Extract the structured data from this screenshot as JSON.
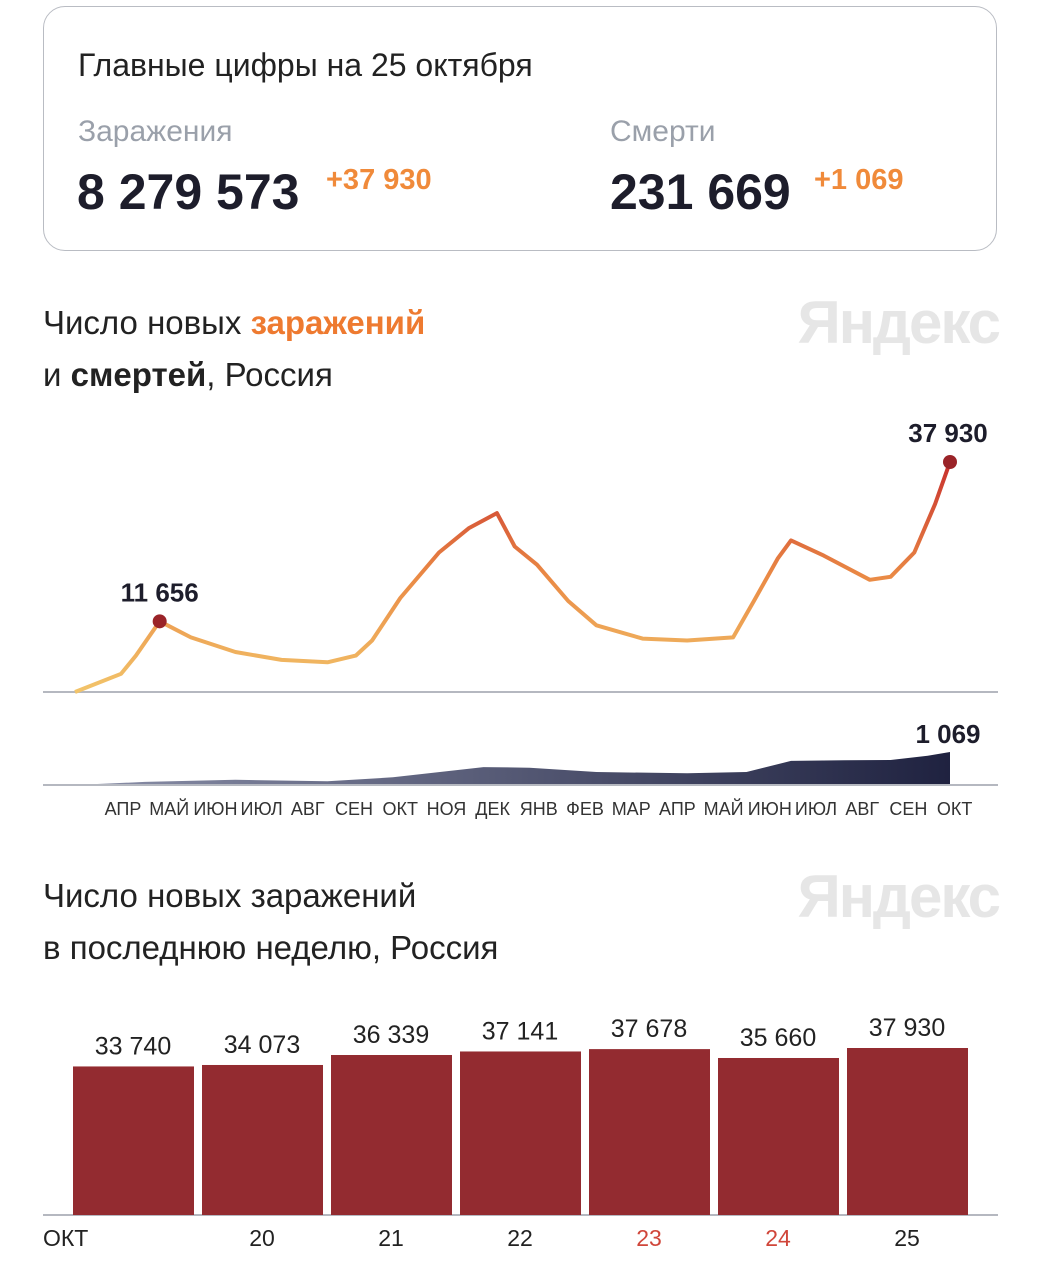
{
  "summary": {
    "title": "Главные цифры на 25 октября",
    "infections_label": "Заражения",
    "infections_total": "8 279 573",
    "infections_delta": "+37 930",
    "deaths_label": "Смерти",
    "deaths_total": "231 669",
    "deaths_delta": "+1 069"
  },
  "logo": "Яндекс",
  "chart_data": [
    {
      "type": "line",
      "title_parts": [
        "Число новых ",
        "заражений",
        "и ",
        "смертей",
        ", Россия"
      ],
      "series": [
        {
          "name": "заражений",
          "color": "#e06a35",
          "x": [
            "2020-03-15",
            "2020-04-15",
            "2020-04-25",
            "2020-05-11",
            "2020-06-01",
            "2020-07-01",
            "2020-08-01",
            "2020-09-01",
            "2020-09-20",
            "2020-10-01",
            "2020-10-20",
            "2020-11-15",
            "2020-12-05",
            "2020-12-24",
            "2021-01-05",
            "2021-01-20",
            "2021-02-10",
            "2021-03-01",
            "2021-04-01",
            "2021-05-01",
            "2021-06-01",
            "2021-06-15",
            "2021-07-01",
            "2021-07-10",
            "2021-08-01",
            "2021-09-01",
            "2021-09-15",
            "2021-10-01",
            "2021-10-15",
            "2021-10-25"
          ],
          "values": [
            0,
            3000,
            6000,
            11656,
            9000,
            6600,
            5300,
            4900,
            6000,
            8500,
            15500,
            23000,
            27000,
            29500,
            24000,
            21000,
            15000,
            11000,
            8800,
            8500,
            9000,
            15000,
            22000,
            25000,
            22500,
            18500,
            19000,
            23000,
            31000,
            37930
          ]
        },
        {
          "name": "смертей",
          "color": "#3b3f66",
          "x": [
            "2020-03-15",
            "2020-05-01",
            "2020-07-01",
            "2020-09-01",
            "2020-10-15",
            "2020-12-15",
            "2021-01-15",
            "2021-03-01",
            "2021-05-01",
            "2021-06-10",
            "2021-07-10",
            "2021-08-15",
            "2021-09-15",
            "2021-10-10",
            "2021-10-25"
          ],
          "values": [
            0,
            100,
            170,
            120,
            250,
            580,
            560,
            420,
            380,
            420,
            780,
            800,
            810,
            950,
            1069
          ]
        }
      ],
      "annotations": [
        {
          "label": "11 656",
          "x": "2020-05-11",
          "y": 11656
        },
        {
          "label": "37 930",
          "x": "2021-10-25",
          "y": 37930
        },
        {
          "label": "1 069",
          "x": "2021-10-25",
          "y": 1069
        }
      ],
      "xtick_labels": [
        "АПР",
        "МАЙ",
        "ИЮН",
        "ИЮЛ",
        "АВГ",
        "СЕН",
        "ОКТ",
        "НОЯ",
        "ДЕК",
        "ЯНВ",
        "ФЕВ",
        "МАР",
        "АПР",
        "МАЙ",
        "ИЮН",
        "ИЮЛ",
        "АВГ",
        "СЕН",
        "ОКТ"
      ],
      "xlim": [
        "2020-03-15",
        "2021-10-25"
      ],
      "grid": false
    },
    {
      "type": "bar",
      "title_lines": [
        "Число новых заражений",
        "в последнюю неделю, Россия"
      ],
      "categories": [
        "ОКТ",
        "20",
        "21",
        "22",
        "23",
        "24",
        "25"
      ],
      "category_colors": [
        "#222",
        "#222",
        "#222",
        "#222",
        "#d0463a",
        "#d0463a",
        "#222"
      ],
      "values": [
        33740,
        34073,
        36339,
        37141,
        37678,
        35660,
        37930
      ],
      "value_labels": [
        "33 740",
        "34 073",
        "36 339",
        "37 141",
        "37 678",
        "35 660",
        "37 930"
      ],
      "bar_color": "#932b30",
      "ylim": [
        0,
        37930
      ]
    }
  ]
}
